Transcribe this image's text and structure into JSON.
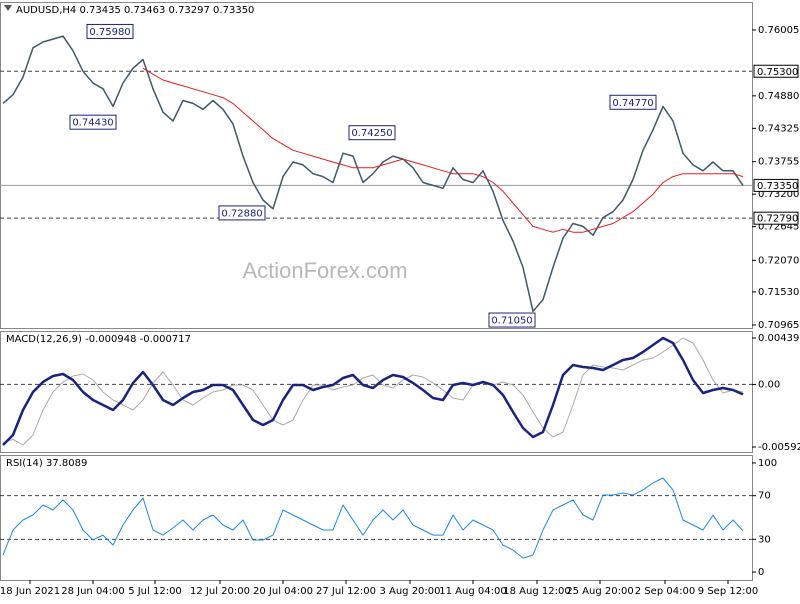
{
  "window": {
    "watermark": "ActionForex.com"
  },
  "chart_data": [
    {
      "type": "line",
      "title": "AUDUSD,H4  0.73435 0.73463 0.73297 0.73350",
      "xlim": [
        0,
        74
      ],
      "ylim": [
        0.70914,
        0.76483
      ],
      "yticks": [
        0.76005,
        {
          "value": 0.7488,
          "label": "0.74880"
        },
        0.74325,
        0.73755,
        {
          "value": 0.732,
          "label": "0.73200"
        },
        0.72645,
        {
          "value": 0.7207,
          "label": "0.72070"
        },
        {
          "value": 0.7153,
          "label": "0.71530"
        },
        0.70965
      ],
      "hlines": [
        {
          "value": 0.753,
          "label": "0.75300",
          "style": "dashed"
        },
        {
          "value": 0.7335,
          "label": "0.73350",
          "style": "solid"
        },
        {
          "value": 0.7279,
          "label": "0.72790",
          "style": "dashed"
        }
      ],
      "annotations": [
        {
          "x": 10.7,
          "value": 0.7598,
          "label": "0.75980"
        },
        {
          "x": 9,
          "value": 0.7443,
          "label": "0.74430"
        },
        {
          "x": 36.9,
          "value": 0.7425,
          "label": "0.74250"
        },
        {
          "x": 23.9,
          "value": 0.7288,
          "label": "0.72880"
        },
        {
          "x": 50.9,
          "value": 0.7105,
          "label": "0.71050"
        },
        {
          "x": 63,
          "value": 0.7477,
          "label": "0.74770"
        }
      ],
      "series": [
        {
          "color": "#3d5a6c",
          "width": 1.5,
          "values": [
            0.7475,
            0.749,
            0.752,
            0.757,
            0.758,
            0.7585,
            0.759,
            0.7565,
            0.753,
            0.751,
            0.75,
            0.747,
            0.751,
            0.7535,
            0.755,
            0.75,
            0.746,
            0.7445,
            0.748,
            0.7475,
            0.7465,
            0.748,
            0.7465,
            0.744,
            0.7385,
            0.734,
            0.731,
            0.7295,
            0.735,
            0.7375,
            0.737,
            0.7355,
            0.735,
            0.734,
            0.739,
            0.7385,
            0.734,
            0.7355,
            0.7375,
            0.7385,
            0.738,
            0.7365,
            0.734,
            0.7335,
            0.733,
            0.7365,
            0.7345,
            0.734,
            0.736,
            0.7325,
            0.7275,
            0.724,
            0.7195,
            0.712,
            0.714,
            0.7195,
            0.7245,
            0.727,
            0.7265,
            0.725,
            0.728,
            0.729,
            0.731,
            0.7345,
            0.7395,
            0.743,
            0.747,
            0.7445,
            0.739,
            0.737,
            0.736,
            0.7375,
            0.736,
            0.736,
            0.7335
          ]
        },
        {
          "color": "#e02020",
          "width": 1,
          "values": [
            null,
            null,
            null,
            null,
            null,
            null,
            null,
            null,
            null,
            null,
            null,
            null,
            null,
            null,
            0.7535,
            0.7525,
            0.7515,
            0.751,
            0.7505,
            0.75,
            0.7495,
            0.749,
            0.7485,
            0.7475,
            0.746,
            0.7445,
            0.743,
            0.7415,
            0.7405,
            0.7395,
            0.739,
            0.7385,
            0.738,
            0.7375,
            0.737,
            0.7365,
            0.7365,
            0.7365,
            0.737,
            0.7375,
            0.738,
            0.7375,
            0.737,
            0.7365,
            0.736,
            0.7355,
            0.7355,
            0.7355,
            0.735,
            0.734,
            0.7325,
            0.7305,
            0.7285,
            0.7265,
            0.726,
            0.7255,
            0.726,
            0.7255,
            0.7255,
            0.726,
            0.7265,
            0.727,
            0.728,
            0.729,
            0.7305,
            0.732,
            0.734,
            0.735,
            0.7355,
            0.7355,
            0.7355,
            0.7355,
            0.7355,
            0.7355,
            0.735
          ]
        }
      ]
    },
    {
      "type": "line",
      "title": "MACD(12,26,9) -0.000948 -0.000717",
      "xlim": [
        0,
        74
      ],
      "ylim": [
        -0.006393,
        0.005053
      ],
      "yticks": [
        0.004391,
        {
          "value": 0,
          "label": "0.00"
        },
        -0.005922
      ],
      "hlines": [
        {
          "value": 0,
          "style": "dashed"
        }
      ],
      "series": [
        {
          "color": "#aaaaaa",
          "width": 1,
          "values": [
            -0.0055,
            -0.0052,
            -0.005733,
            -0.004787,
            -0.002422,
            -0.000719,
            0.000227,
            0.000795,
            0.000984,
            0.000416,
            -0.000719,
            -0.001476,
            -0.001949,
            -0.002422,
            -0.001476,
            0.000132,
            0.001173,
            -5.7e-05,
            -0.001476,
            -0.001949,
            -0.001287,
            -0.000719,
            -0.00053,
            -5.7e-05,
            -5.7e-05,
            -0.00053,
            -0.001949,
            -0.003368,
            -0.003841,
            -0.003368,
            -0.001476,
            -5.7e-05,
            -5.7e-05,
            -0.00053,
            -0.000246,
            -5.7e-05,
            0.000605,
            0.000889,
            -5.7e-05,
            -0.000341,
            0.000416,
            0.000889,
            0.0007,
            0.000132,
            -0.00053,
            -0.001287,
            -0.001476,
            -5.7e-05,
            0.000132,
            -5.7e-05,
            0.000227,
            -5.7e-05,
            -0.001003,
            -0.002611,
            -0.004125,
            -0.004976,
            -0.004503,
            -0.001949,
            0.000889,
            0.001835,
            0.001646,
            0.001551,
            0.001362,
            0.001835,
            0.002308,
            0.002497,
            0.003065,
            0.003727,
            0.004389,
            0.003916,
            0.002308,
            0.000416,
            -0.000814,
            -0.00053,
            -0.000717
          ]
        },
        {
          "color": "#1a237e",
          "width": 2.5,
          "values": [
            -0.005733,
            -0.004787,
            -0.002422,
            -0.000719,
            0.000227,
            0.000795,
            0.000984,
            0.000416,
            -0.000719,
            -0.001476,
            -0.001949,
            -0.002422,
            -0.001476,
            0.000132,
            0.001173,
            -5.7e-05,
            -0.001476,
            -0.001949,
            -0.001287,
            -0.000719,
            -0.00053,
            -5.7e-05,
            -5.7e-05,
            -0.00053,
            -0.001949,
            -0.003368,
            -0.003841,
            -0.003368,
            -0.001476,
            -5.7e-05,
            -5.7e-05,
            -0.00053,
            -0.000246,
            -5.7e-05,
            0.000605,
            0.000889,
            -5.7e-05,
            -0.000341,
            0.000416,
            0.000889,
            0.0007,
            0.000132,
            -0.00053,
            -0.001287,
            -0.001476,
            -5.7e-05,
            0.000132,
            -5.7e-05,
            0.000227,
            -5.7e-05,
            -0.001003,
            -0.002611,
            -0.004125,
            -0.004976,
            -0.004503,
            -0.001949,
            0.000889,
            0.001835,
            0.001646,
            0.001551,
            0.001362,
            0.001835,
            0.002308,
            0.002497,
            0.003065,
            0.003727,
            0.004389,
            0.003916,
            0.002308,
            0.000416,
            -0.000814,
            -0.00053,
            -0.000341,
            -0.00053,
            -0.000948
          ]
        }
      ]
    },
    {
      "type": "line",
      "title": "RSI(14) 37.8089",
      "xlim": [
        0,
        74
      ],
      "ylim": [
        -7.3,
        107.3
      ],
      "yticks": [
        100,
        70,
        30,
        0
      ],
      "hlines": [
        {
          "value": 70,
          "style": "dashed"
        },
        {
          "value": 30,
          "style": "dashed"
        }
      ],
      "xticks": [
        {
          "value": 2.7,
          "label": "18 Jun 2021"
        },
        {
          "value": 9,
          "label": "28 Jun 04:00"
        },
        {
          "value": 15.2,
          "label": "5 Jul 12:00"
        },
        {
          "value": 21.7,
          "label": "12 Jul 20:00"
        },
        {
          "value": 28,
          "label": "20 Jul 04:00"
        },
        {
          "value": 34.3,
          "label": "27 Jul 12:00"
        },
        {
          "value": 40.7,
          "label": "3 Aug 20:00"
        },
        {
          "value": 47,
          "label": "11 Aug 04:00"
        },
        {
          "value": 53.4,
          "label": "18 Aug 12:00"
        },
        {
          "value": 59.7,
          "label": "25 Aug 20:00"
        },
        {
          "value": 66.2,
          "label": "2 Sep 04:00"
        },
        {
          "value": 72.5,
          "label": "9 Sep 12:00"
        }
      ],
      "series": [
        {
          "color": "#1e88e5",
          "width": 1,
          "values": [
            15.6,
            38.5,
            47.7,
            52.3,
            61.5,
            56.9,
            66.1,
            56.9,
            38.5,
            29.4,
            33.9,
            24.8,
            43.1,
            56.9,
            67.9,
            38.5,
            33.9,
            40.4,
            47.7,
            38.5,
            47.7,
            52.3,
            43.1,
            38.5,
            47.7,
            29.4,
            29.4,
            33.9,
            56.9,
            52.3,
            47.7,
            43.1,
            38.5,
            38.5,
            61.5,
            47.7,
            33.9,
            47.7,
            56.9,
            47.7,
            56.9,
            43.1,
            38.5,
            33.9,
            33.9,
            52.3,
            38.5,
            47.7,
            43.1,
            38.5,
            24.8,
            20.2,
            12.8,
            15.6,
            38.5,
            56.9,
            61.5,
            66.1,
            52.3,
            47.7,
            70.6,
            70.6,
            72.5,
            70.6,
            75.2,
            81.7,
            86.2,
            75.2,
            47.7,
            43.1,
            38.5,
            52.3,
            38.5,
            47.7,
            37.8
          ]
        }
      ]
    }
  ]
}
